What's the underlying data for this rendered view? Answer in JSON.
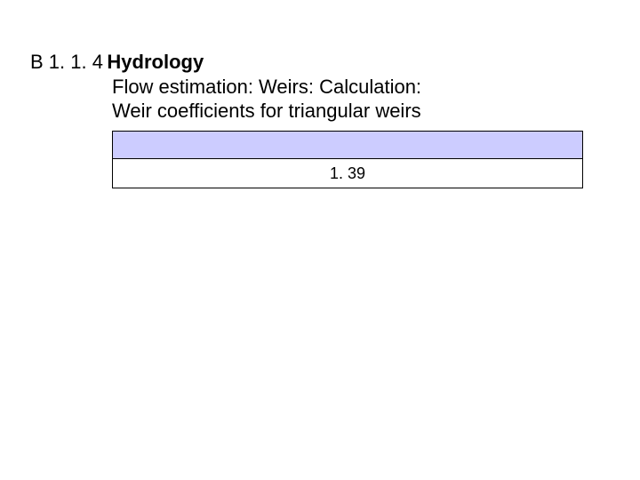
{
  "heading": {
    "code": "B 1. 1. 4",
    "title": "Hydrology",
    "subtitle1": "Flow estimation: Weirs: Calculation:",
    "subtitle2": "Weir coefficients for triangular weirs"
  },
  "table": {
    "header_bg": "#ccccff",
    "value_bg": "#ffffff",
    "border_color": "#000000",
    "header_text": "",
    "value_text": "1. 39"
  }
}
